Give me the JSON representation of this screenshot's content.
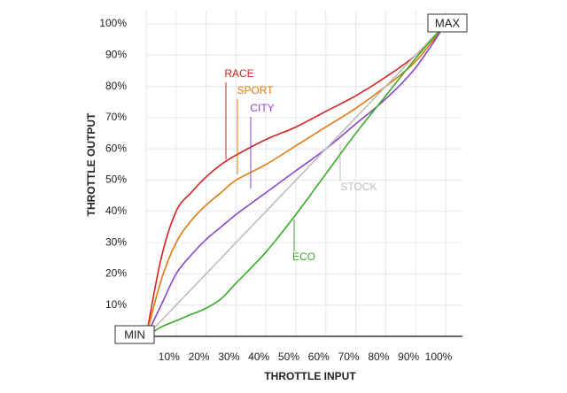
{
  "chart_data": {
    "type": "line",
    "x_label": "THROTTLE INPUT",
    "y_label": "THROTTLE OUTPUT",
    "start_label": "MIN",
    "end_label": "MAX",
    "x": [
      0,
      5,
      10,
      15,
      20,
      25,
      30,
      40,
      50,
      60,
      70,
      80,
      90,
      100
    ],
    "series": [
      {
        "name": "RACE",
        "color": "#d42020",
        "values": [
          0,
          25,
          40,
          46,
          51,
          55,
          58,
          63,
          67,
          72,
          77,
          83,
          90,
          100
        ]
      },
      {
        "name": "SPORT",
        "color": "#e07a10",
        "values": [
          0,
          18,
          30,
          37,
          42,
          46,
          50,
          55,
          61,
          67,
          73,
          80,
          88,
          100
        ]
      },
      {
        "name": "CITY",
        "color": "#8a45c8",
        "values": [
          0,
          10,
          20,
          26,
          31,
          35,
          39,
          46,
          53,
          60,
          68,
          76,
          86,
          100
        ]
      },
      {
        "name": "STOCK",
        "color": "#bdbdbd",
        "values": [
          0,
          5,
          10,
          15,
          20,
          25,
          30,
          40,
          50,
          60,
          70,
          80,
          90,
          100
        ]
      },
      {
        "name": "ECO",
        "color": "#3aaa2a",
        "values": [
          0,
          3,
          5,
          7,
          9,
          12,
          17,
          27,
          39,
          52,
          65,
          77,
          89,
          100
        ]
      }
    ],
    "xlim": [
      0,
      100
    ],
    "ylim": [
      0,
      100
    ],
    "xticks": [
      {
        "value": 10,
        "label": "10%"
      },
      {
        "value": 20,
        "label": "20%"
      },
      {
        "value": 30,
        "label": "30%"
      },
      {
        "value": 40,
        "label": "40%"
      },
      {
        "value": 50,
        "label": "50%"
      },
      {
        "value": 60,
        "label": "60%"
      },
      {
        "value": 70,
        "label": "70%"
      },
      {
        "value": 80,
        "label": "80%"
      },
      {
        "value": 90,
        "label": "90%"
      },
      {
        "value": 100,
        "label": "100%"
      }
    ],
    "yticks": [
      {
        "value": 10,
        "label": "10%"
      },
      {
        "value": 20,
        "label": "20%"
      },
      {
        "value": 30,
        "label": "30%"
      },
      {
        "value": 40,
        "label": "40%"
      },
      {
        "value": 50,
        "label": "50%"
      },
      {
        "value": 60,
        "label": "60%"
      },
      {
        "value": 70,
        "label": "70%"
      },
      {
        "value": 80,
        "label": "80%"
      },
      {
        "value": 90,
        "label": "90%"
      },
      {
        "value": 100,
        "label": "100%"
      }
    ],
    "grid": true
  }
}
